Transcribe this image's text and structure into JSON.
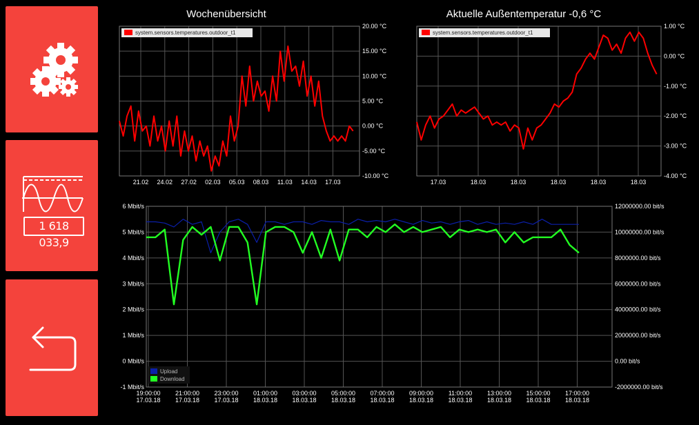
{
  "sidebar": {
    "meter_value": "1 618 033,9"
  },
  "colors": {
    "button_bg": "#f4433c",
    "temperature_line": "#ff0000",
    "upload_line": "#0b1fa8",
    "download_line": "#22ff22",
    "grid": "#555555"
  },
  "icons": [
    "gears-icon",
    "meter-wave-icon",
    "back-arrow-icon"
  ],
  "charts": {
    "week": {
      "title": "Wochenübersicht",
      "legend": "system.sensors.temperatures.outdoor_t1"
    },
    "current": {
      "title": "Aktuelle Außentemperatur -0,6 °C",
      "legend": "system.sensors.temperatures.outdoor_t1"
    },
    "network": {
      "legend_upload": "Upload",
      "legend_download": "Download"
    }
  },
  "chart_data": [
    {
      "type": "line",
      "title": "Wochenübersicht",
      "series": [
        {
          "name": "system.sensors.temperatures.outdoor_t1",
          "color": "#ff0000",
          "x": [
            0,
            0.3,
            0.6,
            0.9,
            1.2,
            1.5,
            1.8,
            2.1,
            2.4,
            2.7,
            3.0,
            3.3,
            3.6,
            3.9,
            4.2,
            4.5,
            4.8,
            5.1,
            5.4,
            5.7,
            6.0,
            6.3,
            6.6,
            6.9,
            7.2,
            7.5,
            7.8,
            8.1,
            8.4,
            8.7,
            9.0,
            9.3,
            9.6,
            9.9,
            10.2,
            10.5,
            10.8,
            11.1,
            11.4,
            11.7,
            12.0,
            12.3,
            12.6,
            12.9,
            13.2,
            13.5,
            13.8,
            14.1,
            14.4,
            14.7,
            15.0,
            15.3,
            15.6,
            15.9,
            16.2,
            16.5,
            16.8,
            17.1,
            17.4,
            17.7,
            18.0,
            18.3
          ],
          "y": [
            1,
            -2,
            2,
            4,
            -3,
            3,
            -1,
            0,
            -4,
            2,
            -3,
            0,
            -5,
            1,
            -4,
            2,
            -6,
            -1,
            -5,
            -2,
            -7,
            -3,
            -6,
            -4,
            -9,
            -6,
            -8,
            -3,
            -6,
            2,
            -3,
            0,
            10,
            4,
            12,
            5,
            9,
            6,
            7,
            3,
            10,
            5,
            15,
            9,
            16,
            11,
            12,
            8,
            13,
            6,
            10,
            4,
            9,
            2,
            -1,
            -3,
            -2,
            -3,
            -2,
            -3,
            0,
            -1
          ]
        }
      ],
      "x_ticks": [
        "21.02",
        "24.02",
        "27.02",
        "02.03",
        "05.03",
        "08.03",
        "11.03",
        "14.03",
        "17.03"
      ],
      "y_ticks": [
        "20.00 °C",
        "15.00 °C",
        "10.00 °C",
        "5.00 °C",
        "0.00 °C",
        "-5.00 °C",
        "-10.00 °C"
      ],
      "ylim": [
        -10,
        20
      ],
      "xlim": [
        0,
        18.8
      ],
      "y_axis_side": "right",
      "grid": true,
      "legend_position": "top-left"
    },
    {
      "type": "line",
      "title": "Aktuelle Außentemperatur -0,6 °C",
      "series": [
        {
          "name": "system.sensors.temperatures.outdoor_t1",
          "color": "#ff0000",
          "x": [
            0,
            0.4,
            0.8,
            1.2,
            1.6,
            2.0,
            2.4,
            2.8,
            3.2,
            3.6,
            4.0,
            4.4,
            4.8,
            5.2,
            5.6,
            6.0,
            6.4,
            6.8,
            7.2,
            7.6,
            8.0,
            8.4,
            8.8,
            9.2,
            9.6,
            10.0,
            10.4,
            10.8,
            11.2,
            11.6,
            12.0,
            12.4,
            12.8,
            13.2,
            13.6,
            14.0,
            14.4,
            14.8,
            15.2,
            15.6,
            16.0,
            16.4,
            16.8,
            17.2,
            17.6,
            18.0,
            18.4,
            18.8,
            19.2,
            19.6,
            20.0,
            20.4,
            20.8,
            21.2,
            21.6
          ],
          "y": [
            -2.2,
            -2.8,
            -2.3,
            -2.0,
            -2.4,
            -2.1,
            -2.0,
            -1.8,
            -1.6,
            -2.0,
            -1.8,
            -1.9,
            -1.8,
            -1.7,
            -1.9,
            -2.1,
            -2.0,
            -2.3,
            -2.2,
            -2.3,
            -2.2,
            -2.5,
            -2.3,
            -2.4,
            -3.1,
            -2.4,
            -2.8,
            -2.4,
            -2.3,
            -2.1,
            -1.9,
            -1.6,
            -1.7,
            -1.5,
            -1.4,
            -1.2,
            -0.6,
            -0.4,
            -0.1,
            0.1,
            -0.1,
            0.3,
            0.7,
            0.6,
            0.2,
            0.4,
            0.1,
            0.6,
            0.8,
            0.5,
            0.8,
            0.6,
            0.1,
            -0.3,
            -0.6
          ]
        }
      ],
      "x_ticks": [
        "17.03",
        "18.03",
        "18.03",
        "18.03",
        "18.03",
        "18.03"
      ],
      "y_ticks": [
        "1.00 °C",
        "0.00 °C",
        "-1.00 °C",
        "-2.00 °C",
        "-3.00 °C",
        "-4.00 °C"
      ],
      "ylim": [
        -4,
        1
      ],
      "xlim": [
        0,
        22
      ],
      "y_axis_side": "right",
      "grid": true,
      "legend_position": "top-left"
    },
    {
      "type": "line",
      "series": [
        {
          "name": "Upload",
          "color": "#0b1fa8",
          "x": [
            19.0,
            19.5,
            20.0,
            20.5,
            21.0,
            21.5,
            22.0,
            22.5,
            23.0,
            23.5,
            24.0,
            24.5,
            25.0,
            25.5,
            26.0,
            26.5,
            27.0,
            27.5,
            28.0,
            28.5,
            29.0,
            29.5,
            30.0,
            30.5,
            31.0,
            31.5,
            32.0,
            32.5,
            33.0,
            33.5,
            34.0,
            34.5,
            35.0,
            35.5,
            36.0,
            36.5,
            37.0,
            37.5,
            38.0,
            38.5,
            39.0,
            39.5,
            40.0,
            40.5,
            41.0,
            41.5,
            42.0,
            42.5
          ],
          "y": [
            5.4,
            5.4,
            5.35,
            5.2,
            5.5,
            5.3,
            5.4,
            4.2,
            5.0,
            5.4,
            5.5,
            5.3,
            4.6,
            5.4,
            5.4,
            5.3,
            5.4,
            5.4,
            5.3,
            5.45,
            5.4,
            5.4,
            5.3,
            5.5,
            5.4,
            5.45,
            5.4,
            5.5,
            5.4,
            5.3,
            5.45,
            5.35,
            5.4,
            5.3,
            5.4,
            5.45,
            5.3,
            5.4,
            5.3,
            5.35,
            5.3,
            5.4,
            5.3,
            5.5,
            5.3,
            5.3,
            5.3,
            5.3
          ]
        },
        {
          "name": "Download",
          "color": "#22ff22",
          "x": [
            19.0,
            19.5,
            20.0,
            20.5,
            21.0,
            21.5,
            22.0,
            22.5,
            23.0,
            23.5,
            24.0,
            24.5,
            25.0,
            25.5,
            26.0,
            26.5,
            27.0,
            27.5,
            28.0,
            28.5,
            29.0,
            29.5,
            30.0,
            30.5,
            31.0,
            31.5,
            32.0,
            32.5,
            33.0,
            33.5,
            34.0,
            34.5,
            35.0,
            35.5,
            36.0,
            36.5,
            37.0,
            37.5,
            38.0,
            38.5,
            39.0,
            39.5,
            40.0,
            40.5,
            41.0,
            41.5,
            42.0,
            42.5
          ],
          "y": [
            4.8,
            4.8,
            5.1,
            2.2,
            4.7,
            5.2,
            4.9,
            5.2,
            3.9,
            5.2,
            5.2,
            4.6,
            2.2,
            5.0,
            5.2,
            5.2,
            5.0,
            4.2,
            5.0,
            4.0,
            5.1,
            3.9,
            5.1,
            5.1,
            4.8,
            5.2,
            5.0,
            5.3,
            5.0,
            5.2,
            5.0,
            5.1,
            5.2,
            4.8,
            5.1,
            5.0,
            5.1,
            5.0,
            5.1,
            4.6,
            5.0,
            4.6,
            4.8,
            4.8,
            4.8,
            5.1,
            4.5,
            4.2
          ]
        }
      ],
      "x_ticks": [
        "19:00:00\n17.03.18",
        "21:00:00\n17.03.18",
        "23:00:00\n17.03.18",
        "01:00:00\n18.03.18",
        "03:00:00\n18.03.18",
        "05:00:00\n18.03.18",
        "07:00:00\n18.03.18",
        "09:00:00\n18.03.18",
        "11:00:00\n18.03.18",
        "13:00:00\n18.03.18",
        "15:00:00\n18.03.18",
        "17:00:00\n18.03.18"
      ],
      "y_ticks_left": [
        "6 Mbit/s",
        "5 Mbit/s",
        "4 Mbit/s",
        "3 Mbit/s",
        "2 Mbit/s",
        "1 Mbit/s",
        "0 Mbit/s",
        "-1 Mbit/s"
      ],
      "y_ticks_right": [
        "12000000.00 bit/s",
        "10000000.00 bit/s",
        "8000000.00 bit/s",
        "6000000.00 bit/s",
        "4000000.00 bit/s",
        "2000000.00 bit/s",
        "0.00 bit/s",
        "-2000000.00 bit/s"
      ],
      "ylim": [
        -1,
        6
      ],
      "xlim": [
        19.0,
        44.3
      ],
      "grid": true,
      "legend_position": "bottom-left"
    }
  ]
}
